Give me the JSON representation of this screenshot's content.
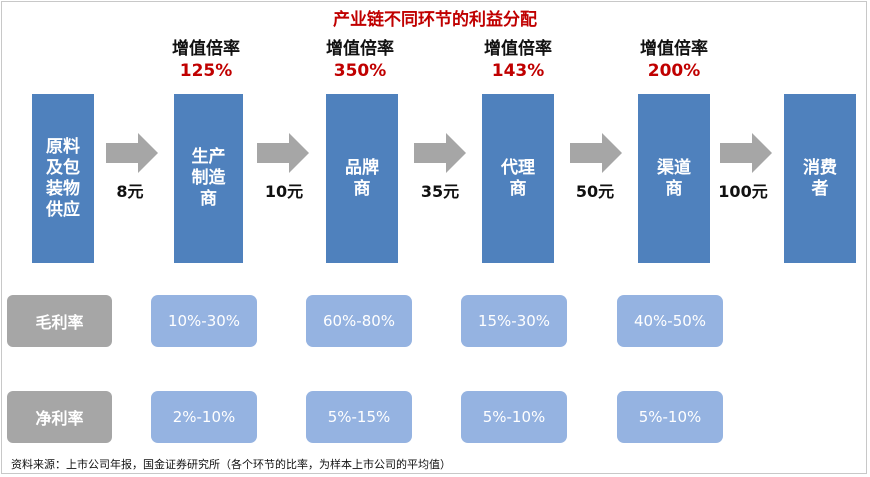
{
  "title": "产业链不同环节的利益分配",
  "multiplier_label": "增值倍率",
  "multipliers": [
    "125%",
    "350%",
    "143%",
    "200%"
  ],
  "nodes": [
    "原料\n及包\n装物\n供应",
    "生产\n制造\n商",
    "品牌\n商",
    "代理\n商",
    "渠道\n商",
    "消费\n者"
  ],
  "prices": [
    "8元",
    "10元",
    "35元",
    "50元",
    "100元"
  ],
  "gross_margin": {
    "label": "毛利率",
    "values": [
      "10%-30%",
      "60%-80%",
      "15%-30%",
      "40%-50%"
    ]
  },
  "net_margin": {
    "label": "净利率",
    "values": [
      "2%-10%",
      "5%-15%",
      "5%-10%",
      "5%-10%"
    ]
  },
  "source": "资料来源：上市公司年报，国金证券研究所（各个环节的比率，为样本上市公司的平均值）",
  "colors": {
    "node": "#4f81bd",
    "cell": "#95b3e1",
    "row_label": "#a6a6a6",
    "arrow": "#a6a6a6",
    "accent": "#c00000"
  }
}
